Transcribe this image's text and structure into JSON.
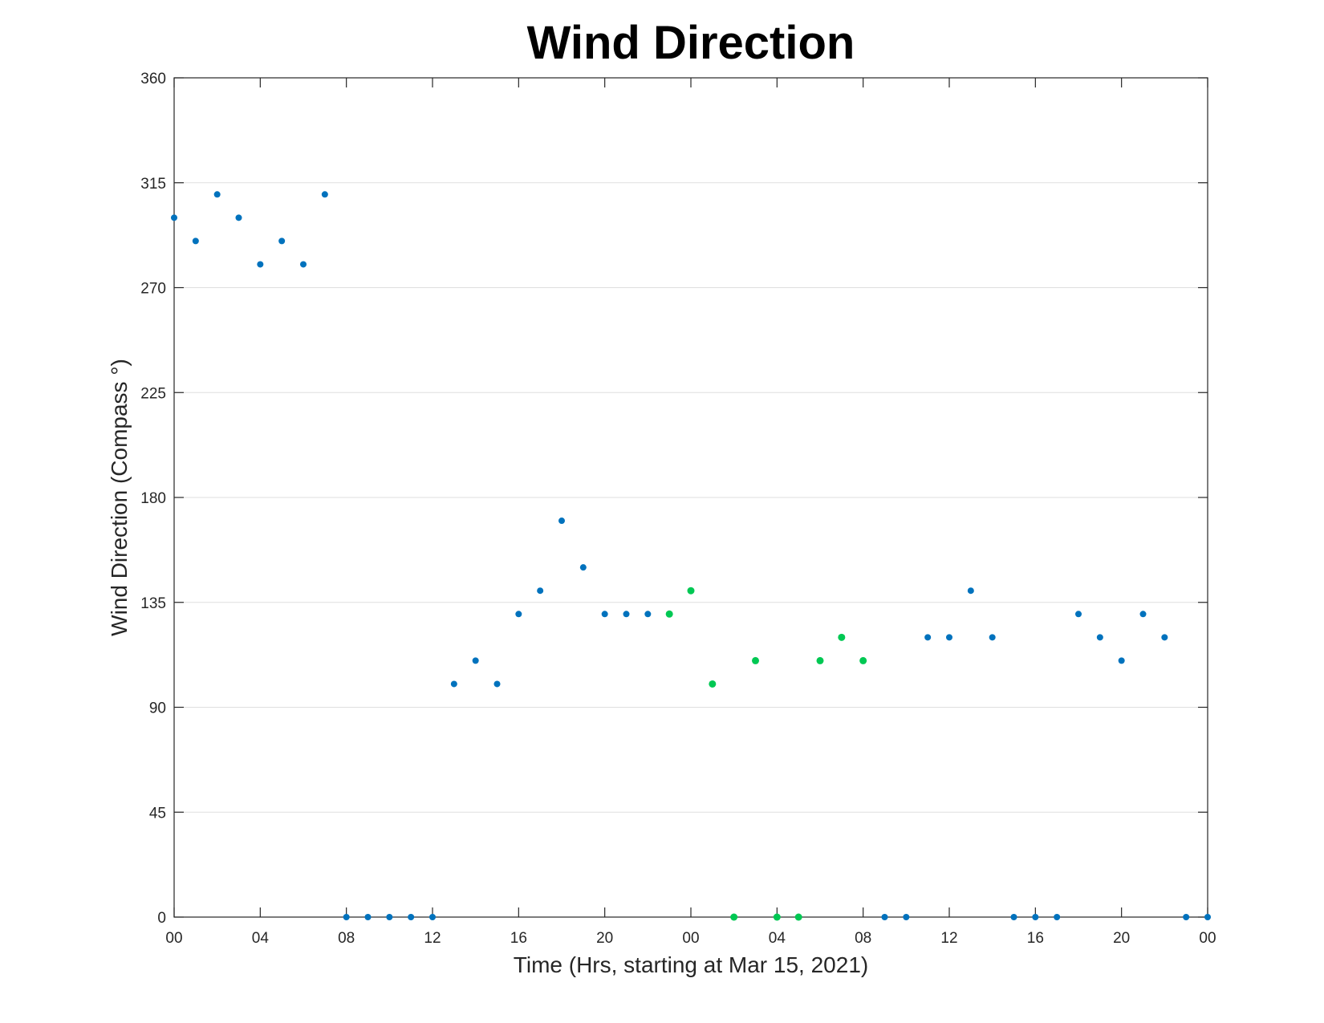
{
  "chart_data": {
    "type": "scatter",
    "title": "Wind Direction",
    "xlabel": "Time (Hrs, starting at Mar 15, 2021)",
    "ylabel": "Wind Direction (Compass °)",
    "xlim": [
      0,
      48
    ],
    "ylim": [
      0,
      360
    ],
    "x_ticks": [
      0,
      4,
      8,
      12,
      16,
      20,
      24,
      28,
      32,
      36,
      40,
      44,
      48
    ],
    "x_tick_labels": [
      "00",
      "04",
      "08",
      "12",
      "16",
      "20",
      "00",
      "04",
      "08",
      "12",
      "16",
      "20",
      "00"
    ],
    "y_ticks": [
      0,
      45,
      90,
      135,
      180,
      225,
      270,
      315,
      360
    ],
    "y_tick_labels": [
      "0",
      "45",
      "90",
      "135",
      "180",
      "225",
      "270",
      "315",
      "360"
    ],
    "grid": "horizontal",
    "series": [
      {
        "color": "#0072bd",
        "points": [
          [
            0,
            300
          ],
          [
            1,
            290
          ],
          [
            2,
            310
          ],
          [
            3,
            300
          ],
          [
            4,
            280
          ],
          [
            5,
            290
          ],
          [
            6,
            280
          ],
          [
            7,
            310
          ],
          [
            8,
            0
          ],
          [
            9,
            0
          ],
          [
            10,
            0
          ],
          [
            11,
            0
          ],
          [
            12,
            0
          ],
          [
            13,
            100
          ],
          [
            14,
            110
          ],
          [
            15,
            100
          ],
          [
            16,
            130
          ],
          [
            17,
            140
          ],
          [
            18,
            170
          ],
          [
            19,
            150
          ],
          [
            20,
            130
          ],
          [
            21,
            130
          ],
          [
            22,
            130
          ],
          [
            33,
            0
          ],
          [
            34,
            0
          ],
          [
            35,
            120
          ],
          [
            36,
            120
          ],
          [
            37,
            140
          ],
          [
            38,
            120
          ],
          [
            39,
            0
          ],
          [
            40,
            0
          ],
          [
            41,
            0
          ],
          [
            42,
            130
          ],
          [
            43,
            120
          ],
          [
            44,
            110
          ],
          [
            45,
            130
          ],
          [
            46,
            120
          ],
          [
            47,
            0
          ],
          [
            48,
            0
          ]
        ]
      },
      {
        "color": "#00c853",
        "points": [
          [
            23,
            130
          ],
          [
            24,
            140
          ],
          [
            25,
            100
          ],
          [
            26,
            0
          ],
          [
            27,
            110
          ],
          [
            28,
            0
          ],
          [
            29,
            0
          ],
          [
            30,
            110
          ],
          [
            31,
            120
          ],
          [
            32,
            110
          ]
        ]
      }
    ]
  }
}
